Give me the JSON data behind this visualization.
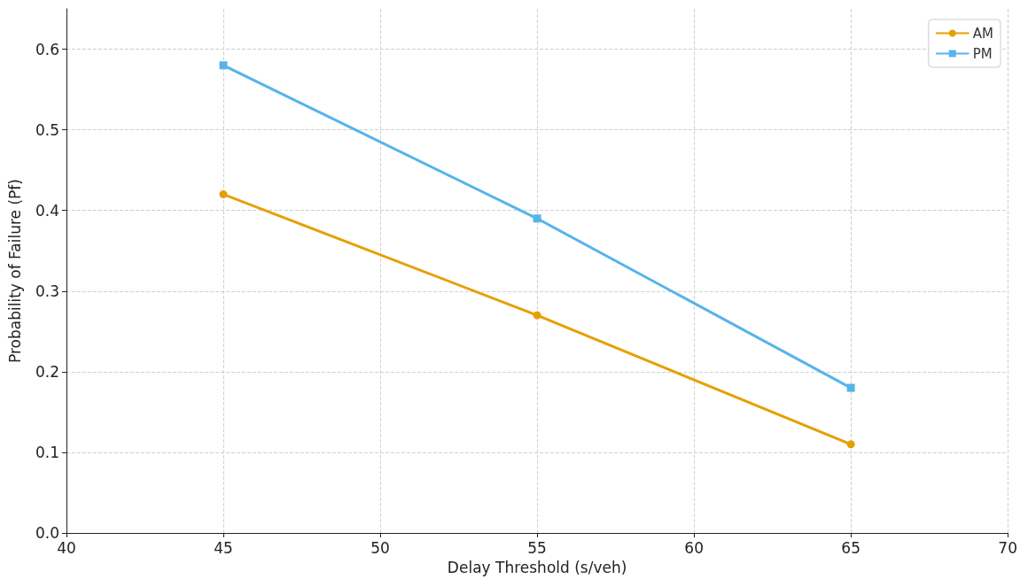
{
  "chart_data": {
    "type": "line",
    "xlabel": "Delay Threshold (s/veh)",
    "ylabel": "Probability of Failure (Pf)",
    "x": [
      45,
      55,
      65
    ],
    "series": [
      {
        "name": "AM",
        "color": "#e69f00",
        "values": [
          0.42,
          0.27,
          0.11
        ],
        "marker": "circle"
      },
      {
        "name": "PM",
        "color": "#56b4e9",
        "values": [
          0.58,
          0.39,
          0.18
        ],
        "marker": "square"
      }
    ],
    "xlim": [
      40,
      70
    ],
    "xticks": [
      40,
      45,
      50,
      55,
      60,
      65,
      70
    ],
    "ylim": [
      0,
      0.65
    ],
    "yticks": [
      {
        "value": 0,
        "label": "0.0"
      },
      0.1,
      0.2,
      0.3,
      0.4,
      0.5,
      0.6
    ],
    "grid": true,
    "legend": "top right",
    "line_style": "solid"
  }
}
